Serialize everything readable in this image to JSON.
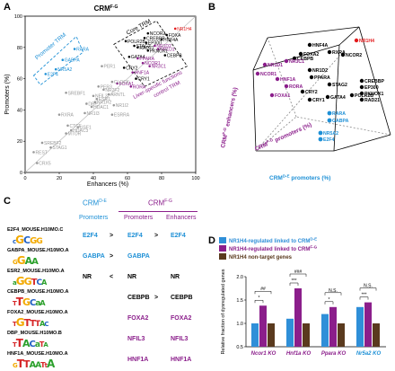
{
  "panel_letters": {
    "a": "A",
    "b": "B",
    "c": "C",
    "d": "D"
  },
  "panelA": {
    "title": "CRM",
    "title_sup": "F-G",
    "xlabel": "Enhancers (%)",
    "ylabel": "Promoters (%)",
    "xticks": [
      "0",
      "20",
      "40",
      "60",
      "80",
      "100"
    ],
    "yticks": [
      "0",
      "20",
      "40",
      "60",
      "80",
      "100"
    ],
    "box_labels": {
      "core": "Core TRM",
      "promoter": "Promoter TRM",
      "liver": "Liver-specific functions",
      "control": "control TRM"
    },
    "points": [
      {
        "label": "NR1H4",
        "x": 88,
        "y": 92,
        "color": "#e31a1c"
      },
      {
        "label": "NCOR2",
        "x": 72,
        "y": 89,
        "color": "#000000"
      },
      {
        "label": "FOXA",
        "x": 83,
        "y": 88,
        "color": "#000000"
      },
      {
        "label": "CREBBP",
        "x": 70,
        "y": 86,
        "color": "#000000"
      },
      {
        "label": "HNF4A",
        "x": 80,
        "y": 85,
        "color": "#000000"
      },
      {
        "label": "POLR2B",
        "x": 59,
        "y": 84,
        "color": "#000000"
      },
      {
        "label": "EP300",
        "x": 71,
        "y": 83,
        "color": "#000000"
      },
      {
        "label": "STAG2",
        "x": 64,
        "y": 81,
        "color": "#000000"
      },
      {
        "label": "NR1D2",
        "x": 76,
        "y": 81,
        "color": "#8b1e8b"
      },
      {
        "label": "RAD21",
        "x": 66,
        "y": 80,
        "color": "#000000"
      },
      {
        "label": "NR1D1",
        "x": 78,
        "y": 79,
        "color": "#8b1e8b"
      },
      {
        "label": "PKNOX1",
        "x": 72,
        "y": 78,
        "color": "#000000"
      },
      {
        "label": "CEBPB",
        "x": 82,
        "y": 75,
        "color": "#000000"
      },
      {
        "label": "GATA4",
        "x": 61,
        "y": 74,
        "color": "#000000"
      },
      {
        "label": "PPARA",
        "x": 66,
        "y": 73,
        "color": "#8b1e8b"
      },
      {
        "label": "NCOR1",
        "x": 69,
        "y": 70,
        "color": "#8b1e8b"
      },
      {
        "label": "NR3C1",
        "x": 73,
        "y": 68,
        "color": "#8b1e8b"
      },
      {
        "label": "CRY2",
        "x": 58,
        "y": 67,
        "color": "#000000"
      },
      {
        "label": "HNF1A",
        "x": 63,
        "y": 64,
        "color": "#8b1e8b"
      },
      {
        "label": "CRY1",
        "x": 65,
        "y": 60,
        "color": "#000000"
      },
      {
        "label": "FOXA1",
        "x": 54,
        "y": 57,
        "color": "#8b1e8b"
      },
      {
        "label": "RORA",
        "x": 62,
        "y": 55,
        "color": "#8b1e8b"
      },
      {
        "label": "RARA",
        "x": 29,
        "y": 79,
        "color": "#1e90d6"
      },
      {
        "label": "GABPA",
        "x": 22,
        "y": 72,
        "color": "#1e90d6"
      },
      {
        "label": "NR5A2",
        "x": 18,
        "y": 66,
        "color": "#1e90d6"
      },
      {
        "label": "E2F4",
        "x": 12,
        "y": 63,
        "color": "#1e90d6"
      },
      {
        "label": "PER1",
        "x": 45,
        "y": 68,
        "color": "#999999"
      },
      {
        "label": "CLOCK",
        "x": 51,
        "y": 58,
        "color": "#999999"
      },
      {
        "label": "PER3",
        "x": 43,
        "y": 55,
        "color": "#999999"
      },
      {
        "label": "NR2F2",
        "x": 46,
        "y": 53,
        "color": "#999999"
      },
      {
        "label": "ARNTL",
        "x": 49,
        "y": 50,
        "color": "#999999"
      },
      {
        "label": "NFIL3",
        "x": 40,
        "y": 49,
        "color": "#999999"
      },
      {
        "label": "ESR1",
        "x": 42,
        "y": 47,
        "color": "#999999"
      },
      {
        "label": "NR1H2",
        "x": 41,
        "y": 45,
        "color": "#999999"
      },
      {
        "label": "DBP",
        "x": 36,
        "y": 44,
        "color": "#999999"
      },
      {
        "label": "HDAC1",
        "x": 39,
        "y": 42,
        "color": "#999999"
      },
      {
        "label": "SREBF1",
        "x": 24,
        "y": 51,
        "color": "#999999"
      },
      {
        "label": "NR1I3",
        "x": 35,
        "y": 38,
        "color": "#999999"
      },
      {
        "label": "ESRRA",
        "x": 51,
        "y": 37,
        "color": "#999999"
      },
      {
        "label": "NR1I2",
        "x": 52,
        "y": 43,
        "color": "#999999"
      },
      {
        "label": "RXRA",
        "x": 20,
        "y": 37,
        "color": "#999999"
      },
      {
        "label": "CTCF",
        "x": 25,
        "y": 30,
        "color": "#999999"
      },
      {
        "label": "USF1",
        "x": 31,
        "y": 29,
        "color": "#999999"
      },
      {
        "label": "HDAC3",
        "x": 27,
        "y": 27,
        "color": "#999999"
      },
      {
        "label": "MTOR",
        "x": 24,
        "y": 25,
        "color": "#999999"
      },
      {
        "label": "SREBF2",
        "x": 10,
        "y": 19,
        "color": "#999999"
      },
      {
        "label": "STAG1",
        "x": 15,
        "y": 16,
        "color": "#999999"
      },
      {
        "label": "REST",
        "x": 5,
        "y": 13,
        "color": "#999999"
      },
      {
        "label": "CRX5",
        "x": 7,
        "y": 6,
        "color": "#999999"
      }
    ]
  },
  "panelB": {
    "axis_x": "CRM",
    "axis_x_sup": "D-E",
    "axis_x_rest": " promoters (%)",
    "axis_y": "CRM",
    "axis_y_sup": "F-G",
    "axis_y_rest": " promoters (%)",
    "axis_z": "CRM",
    "axis_z_sup": "F-G",
    "axis_z_rest": " enhancers (%)",
    "labels": [
      {
        "text": "NR1H4",
        "color": "#e31a1c"
      },
      {
        "text": "HNF4A",
        "color": "#000000"
      },
      {
        "text": "FOXA2",
        "color": "#000000"
      },
      {
        "text": "RXRA",
        "color": "#000000"
      },
      {
        "text": "NCOR2",
        "color": "#000000"
      },
      {
        "text": "CEBPB",
        "color": "#000000"
      },
      {
        "text": "NR1D1",
        "color": "#8b1e8b"
      },
      {
        "text": "NCOR1",
        "color": "#8b1e8b"
      },
      {
        "text": "NR3C1",
        "color": "#8b1e8b"
      },
      {
        "text": "HNF1A",
        "color": "#8b1e8b"
      },
      {
        "text": "RORA",
        "color": "#8b1e8b"
      },
      {
        "text": "FOXA1",
        "color": "#8b1e8b"
      },
      {
        "text": "NR1D2",
        "color": "#000000"
      },
      {
        "text": "PPARA",
        "color": "#000000"
      },
      {
        "text": "CRY2",
        "color": "#000000"
      },
      {
        "text": "CRY1",
        "color": "#000000"
      },
      {
        "text": "STAG2",
        "color": "#000000"
      },
      {
        "text": "GATA4",
        "color": "#000000"
      },
      {
        "text": "POLR2B",
        "color": "#000000"
      },
      {
        "text": "CREBBP",
        "color": "#000000"
      },
      {
        "text": "EP300",
        "color": "#000000"
      },
      {
        "text": "PKNOX1",
        "color": "#000000"
      },
      {
        "text": "RAD21",
        "color": "#000000"
      },
      {
        "text": "RARA",
        "color": "#1e90d6"
      },
      {
        "text": "GABPA",
        "color": "#1e90d6"
      },
      {
        "text": "NR5A2",
        "color": "#1e90d6"
      },
      {
        "text": "E2F4",
        "color": "#1e90d6"
      }
    ]
  },
  "panelC": {
    "header_de": "CRM",
    "header_de_sup": "D-E",
    "header_fg": "CRM",
    "header_fg_sup": "F-G",
    "col_promoters_1": "Promoters",
    "col_promoters_2": "Promoters",
    "col_enhancers": "Enhancers",
    "rows": [
      {
        "motif": "E2F4_MOUSE.H10MO.C",
        "p1": "E2F4",
        "c1": "#1e90d6",
        "op1": ">",
        "p2": "E2F4",
        "c2": "#1e90d6",
        "op2": ">",
        "e": "E2F4",
        "c3": "#1e90d6"
      },
      {
        "motif": "GABPA_MOUSE.H10MO.A",
        "p1": "GABPA",
        "c1": "#1e90d6",
        "op1": ">",
        "p2": "GABPA",
        "c2": "#1e90d6",
        "op2": "",
        "e": "",
        "c3": "#1e90d6"
      },
      {
        "motif": "ESR2_MOUSE.H10MO.A",
        "p1": "NR",
        "c1": "#000000",
        "op1": "<",
        "p2": "NR",
        "c2": "#000000",
        "op2": "",
        "e": "NR",
        "c3": "#000000"
      },
      {
        "motif": "CEBPB_MOUSE.H10MO.A",
        "p1": "",
        "c1": "#000000",
        "op1": "",
        "p2": "CEBPB",
        "c2": "#000000",
        "op2": ">",
        "e": "CEBPB",
        "c3": "#000000"
      },
      {
        "motif": "FOXA2_MOUSE.H10MO.A",
        "p1": "",
        "c1": "#8b1e8b",
        "op1": "",
        "p2": "FOXA2",
        "c2": "#8b1e8b",
        "op2": "",
        "e": "FOXA2",
        "c3": "#8b1e8b"
      },
      {
        "motif": "DBP_MOUSE.H10MO.B",
        "p1": "",
        "c1": "#8b1e8b",
        "op1": "",
        "p2": "NFIL3",
        "c2": "#8b1e8b",
        "op2": "",
        "e": "NFIL3",
        "c3": "#8b1e8b"
      },
      {
        "motif": "HNF1A_MOUSE.H10MO.A",
        "p1": "",
        "c1": "#8b1e8b",
        "op1": "",
        "p2": "HNF1A",
        "c2": "#8b1e8b",
        "op2": "",
        "e": "HNF1A",
        "c3": "#8b1e8b"
      }
    ]
  },
  "chart_data": {
    "type": "bar",
    "ylabel": "Relative fraction of dysregulated genes",
    "yticks": [
      "0.5",
      "1.0",
      "1.5",
      "2.0"
    ],
    "ylim": [
      0.5,
      2.0
    ],
    "legend": [
      {
        "name": "NR1H4-regulated linked to CRM",
        "sup": "D-E",
        "color": "#2f8fd8"
      },
      {
        "name": "NR1H4-regulated linked to CRM",
        "sup": "F-G",
        "color": "#8b1e8b"
      },
      {
        "name": "NR1H4 non-target genes",
        "sup": "",
        "color": "#5a3a1e"
      }
    ],
    "categories": [
      "Ncor1 KO",
      "Hnf1a KO",
      "Ppara KO",
      "Nr5a2 KO"
    ],
    "category_colors": [
      "#8b1e8b",
      "#8b1e8b",
      "#8b1e8b",
      "#1e90d6"
    ],
    "series": [
      {
        "name": "NR1H4-regulated linked to CRMD-E",
        "values": [
          1.0,
          1.1,
          1.2,
          1.35
        ]
      },
      {
        "name": "NR1H4-regulated linked to CRMF-G",
        "values": [
          1.38,
          1.75,
          1.35,
          1.45
        ]
      },
      {
        "name": "NR1H4 non-target genes",
        "values": [
          1.0,
          1.0,
          1.0,
          1.0
        ]
      }
    ],
    "significance": [
      {
        "short": "*",
        "long": "##"
      },
      {
        "short": "***",
        "long": "###"
      },
      {
        "short": "*",
        "long": "N.S."
      },
      {
        "short": "***",
        "long": "N.S."
      }
    ]
  }
}
